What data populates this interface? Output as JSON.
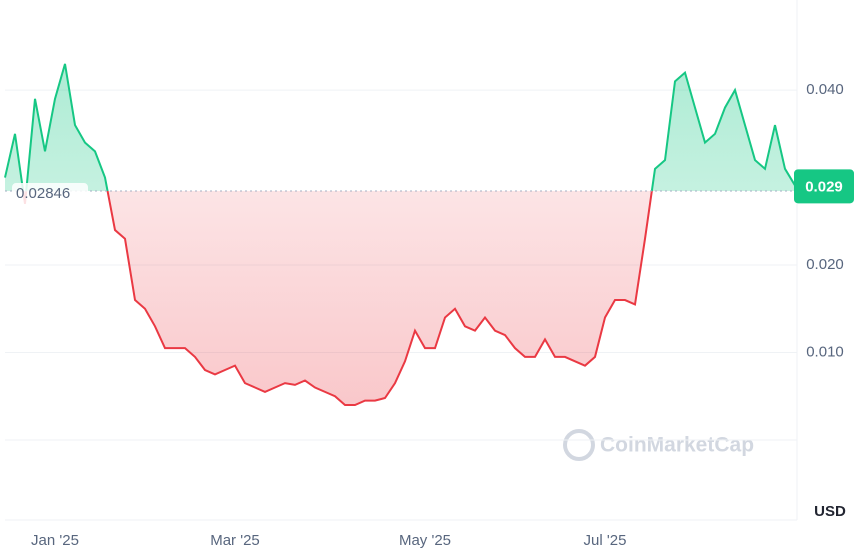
{
  "chart_data": {
    "type": "line",
    "categories": [
      null,
      null,
      null,
      null,
      null,
      "Jan '25",
      null,
      null,
      null,
      null,
      null,
      null,
      null,
      null,
      null,
      null,
      null,
      null,
      null,
      null,
      null,
      null,
      null,
      "Mar '25",
      null,
      null,
      null,
      null,
      null,
      null,
      null,
      null,
      null,
      null,
      null,
      null,
      null,
      null,
      null,
      null,
      null,
      null,
      "May '25",
      null,
      null,
      null,
      null,
      null,
      null,
      null,
      null,
      null,
      null,
      null,
      null,
      null,
      null,
      null,
      null,
      null,
      "Jul '25",
      null,
      null,
      null,
      null,
      null,
      null,
      null,
      null,
      null,
      null,
      null,
      null,
      null,
      null,
      null,
      null,
      null,
      null,
      null
    ],
    "values": [
      0.03,
      0.035,
      0.027,
      0.039,
      0.033,
      0.039,
      0.043,
      0.036,
      0.034,
      0.033,
      0.03,
      0.024,
      0.023,
      0.016,
      0.015,
      0.013,
      0.0105,
      0.0105,
      0.0105,
      0.0095,
      0.008,
      0.0075,
      0.008,
      0.0085,
      0.0065,
      0.006,
      0.0055,
      0.006,
      0.0065,
      0.0063,
      0.0068,
      0.006,
      0.0055,
      0.005,
      0.004,
      0.004,
      0.0045,
      0.0045,
      0.0048,
      0.0065,
      0.009,
      0.0125,
      0.0105,
      0.0105,
      0.014,
      0.015,
      0.013,
      0.0125,
      0.014,
      0.0125,
      0.012,
      0.0105,
      0.0095,
      0.0095,
      0.0115,
      0.0095,
      0.0095,
      0.009,
      0.0085,
      0.0095,
      0.014,
      0.016,
      0.016,
      0.0155,
      0.023,
      0.031,
      0.032,
      0.041,
      0.042,
      0.038,
      0.034,
      0.035,
      0.038,
      0.04,
      0.036,
      0.032,
      0.031,
      0.036,
      0.031,
      0.0291
    ],
    "up_color": "#16c784",
    "down_color": "#ea3943",
    "baseline": 0.02846,
    "current_price": 0.029,
    "ylim": [
      0,
      0.0503
    ],
    "yticks": [
      {
        "value": 0.01,
        "label": "0.010"
      },
      {
        "value": 0.02,
        "label": "0.020"
      },
      {
        "value": 0.04,
        "label": "0.040"
      }
    ],
    "currency": "USD",
    "watermark": "CoinMarketCap",
    "grid": true
  }
}
